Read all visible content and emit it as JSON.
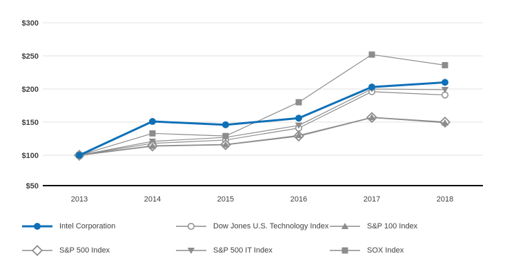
{
  "chart_data": {
    "type": "line",
    "title": "",
    "xlabel": "",
    "ylabel": "",
    "x_categories": [
      "2013",
      "2014",
      "2015",
      "2016",
      "2017",
      "2018"
    ],
    "y_ticks": [
      50,
      100,
      150,
      200,
      250,
      300
    ],
    "y_tick_labels": [
      "$50",
      "$100",
      "$150",
      "$200",
      "$250",
      "$300"
    ],
    "ylim": [
      50,
      300
    ],
    "grid": "horizontal",
    "legend_position": "bottom",
    "series": [
      {
        "name": "Intel Corporation",
        "values": [
          100,
          151,
          146,
          156,
          203,
          210
        ],
        "color": "#0f70b7",
        "marker": "filled-circle",
        "line_width": 3,
        "z": 6
      },
      {
        "name": "Dow Jones U.S. Technology Index",
        "values": [
          100,
          118,
          123,
          141,
          196,
          191
        ],
        "color": "#8c8c8c",
        "marker": "open-circle",
        "line_width": 1.2,
        "z": 1
      },
      {
        "name": "S&P 100 Index",
        "values": [
          100,
          114,
          116,
          130,
          157,
          149
        ],
        "color": "#8c8c8c",
        "marker": "filled-triangle-up",
        "line_width": 1.2,
        "z": 4
      },
      {
        "name": "S&P 500 Index",
        "values": [
          100,
          114,
          116,
          129,
          157,
          150
        ],
        "color": "#8c8c8c",
        "marker": "open-diamond",
        "line_width": 1.8,
        "z": 3
      },
      {
        "name": "S&P 500 IT Index",
        "values": [
          100,
          121,
          127,
          145,
          200,
          199
        ],
        "color": "#8c8c8c",
        "marker": "filled-triangle-down",
        "line_width": 1.2,
        "z": 2
      },
      {
        "name": "SOX Index",
        "values": [
          100,
          133,
          129,
          180,
          252,
          236
        ],
        "color": "#8c8c8c",
        "marker": "filled-square",
        "line_width": 1.2,
        "z": 5
      }
    ]
  },
  "colors": {
    "gridline": "#e0e0e0",
    "axis": "#000000",
    "tick_text": "#404040",
    "legend_text": "#404040",
    "marker_open_fill": "#ffffff",
    "background": "#ffffff"
  }
}
